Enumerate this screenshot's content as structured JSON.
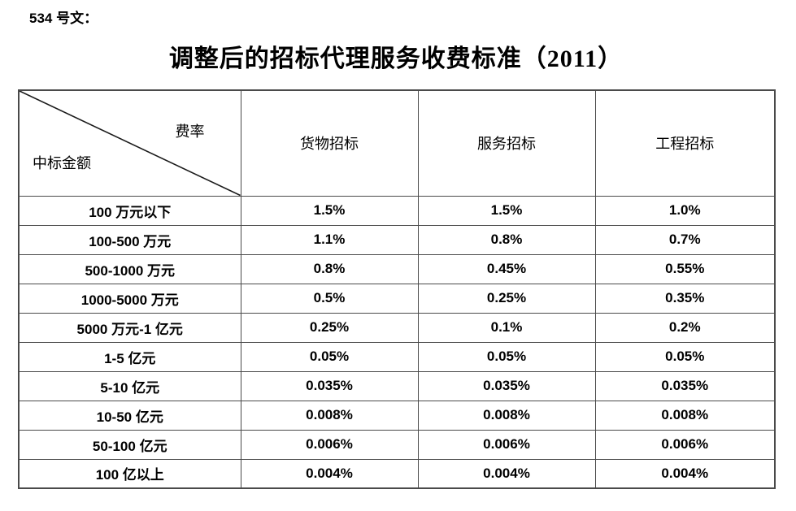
{
  "page": {
    "doc_label": "534 号文：",
    "title": "调整后的招标代理服务收费标准（2011）"
  },
  "table": {
    "corner": {
      "top_right": "费率",
      "bottom_left": "中标金额"
    },
    "columns": [
      "货物招标",
      "服务招标",
      "工程招标"
    ],
    "rows": [
      {
        "label": "100 万元以下",
        "values": [
          "1.5%",
          "1.5%",
          "1.0%"
        ]
      },
      {
        "label": "100-500 万元",
        "values": [
          "1.1%",
          "0.8%",
          "0.7%"
        ]
      },
      {
        "label": "500-1000 万元",
        "values": [
          "0.8%",
          "0.45%",
          "0.55%"
        ]
      },
      {
        "label": "1000-5000 万元",
        "values": [
          "0.5%",
          "0.25%",
          "0.35%"
        ]
      },
      {
        "label": "5000 万元-1 亿元",
        "values": [
          "0.25%",
          "0.1%",
          "0.2%"
        ]
      },
      {
        "label": "1-5 亿元",
        "values": [
          "0.05%",
          "0.05%",
          "0.05%"
        ]
      },
      {
        "label": "5-10 亿元",
        "values": [
          "0.035%",
          "0.035%",
          "0.035%"
        ]
      },
      {
        "label": "10-50 亿元",
        "values": [
          "0.008%",
          "0.008%",
          "0.008%"
        ]
      },
      {
        "label": "50-100 亿元",
        "values": [
          "0.006%",
          "0.006%",
          "0.006%"
        ]
      },
      {
        "label": "100 亿以上",
        "values": [
          "0.004%",
          "0.004%",
          "0.004%"
        ]
      }
    ]
  }
}
